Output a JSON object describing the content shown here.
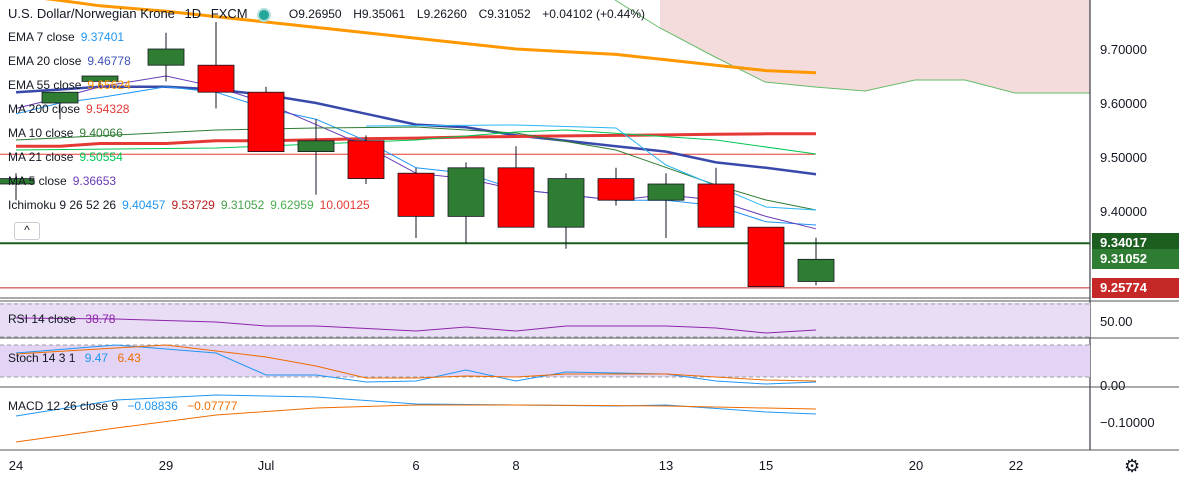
{
  "header": {
    "symbol": "U.S. Dollar/Norwegian Krone",
    "interval": "1D",
    "source": "FXCM",
    "open": "O9.26950",
    "high": "H9.35061",
    "low": "L9.26260",
    "close": "C9.31052",
    "change": "+0.04102 (+0.44%)"
  },
  "indicators": [
    {
      "name": "EMA 7 close",
      "values": [
        "9.37401"
      ],
      "colors": [
        "#2196f3"
      ]
    },
    {
      "name": "EMA 20 close",
      "values": [
        "9.46778"
      ],
      "colors": [
        "#3f51b5"
      ]
    },
    {
      "name": "EMA 55 close",
      "values": [
        "9.65624"
      ],
      "colors": [
        "#ff9800"
      ]
    },
    {
      "name": "MA 200 close",
      "values": [
        "9.54328"
      ],
      "colors": [
        "#e53935"
      ]
    },
    {
      "name": "MA 10 close",
      "values": [
        "9.40066"
      ],
      "colors": [
        "#2e7d32"
      ]
    },
    {
      "name": "MA 21 close",
      "values": [
        "9.50554"
      ],
      "colors": [
        "#00c853"
      ]
    },
    {
      "name": "MA 5 close",
      "values": [
        "9.36653"
      ],
      "colors": [
        "#673ab7"
      ]
    },
    {
      "name": "Ichimoku 9 26 52 26",
      "values": [
        "9.40457",
        "9.53729",
        "9.31052",
        "9.62959",
        "10.00125"
      ],
      "colors": [
        "#2196f3",
        "#b71c1c",
        "#43a047",
        "#4caf50",
        "#e53935"
      ]
    }
  ],
  "rsi_legend": {
    "name": "RSI 14 close",
    "value": "38.78"
  },
  "stoch_legend": {
    "name": "Stoch 14 3 1",
    "k": "9.47",
    "d": "6.43"
  },
  "macd_legend": {
    "name": "MACD 12 26 close 9",
    "macd": "−0.08836",
    "signal": "−0.07777"
  },
  "collapse_label": "^",
  "price_axis": {
    "ticks": [
      "9.70000",
      "9.60000",
      "9.50000",
      "9.40000"
    ],
    "tags": [
      {
        "label": "9.34017",
        "value": 9.34017,
        "color": "#1b5e20"
      },
      {
        "label": "9.31052",
        "value": 9.31052,
        "color": "#2e7d32"
      },
      {
        "label": "9.25774",
        "value": 9.25774,
        "color": "#c62828"
      }
    ]
  },
  "rsi_axis": {
    "ticks": [
      "50.00"
    ]
  },
  "stoch_axis": {
    "ticks": [
      "0.00"
    ]
  },
  "macd_axis": {
    "ticks": [
      "−0.10000"
    ]
  },
  "time_axis": {
    "ticks": [
      "24",
      "29",
      "Jul",
      "6",
      "8",
      "13",
      "15",
      "20",
      "22"
    ]
  },
  "colors": {
    "up": "#2e7d32",
    "down": "#ff0000",
    "cloud_bear": "#f3d6d6",
    "rsi_band": "#e8ddf5",
    "stoch_band": "#e3d4f5"
  },
  "chart_data": {
    "type": "candlestick",
    "title": "U.S. Dollar/Norwegian Krone 1D FXCM",
    "x_ticks": [
      "24",
      "29",
      "Jul",
      "6",
      "8",
      "13",
      "15",
      "20",
      "22"
    ],
    "ylim": [
      9.23,
      9.8
    ],
    "candles": [
      {
        "x": "Jun 24",
        "o": 9.45,
        "h": 9.47,
        "l": 9.42,
        "c": 9.46
      },
      {
        "x": "Jun 25",
        "o": 9.6,
        "h": 9.62,
        "l": 9.57,
        "c": 9.62
      },
      {
        "x": "Jun 26",
        "o": 9.64,
        "h": 9.65,
        "l": 9.63,
        "c": 9.65
      },
      {
        "x": "Jun 29",
        "o": 9.67,
        "h": 9.73,
        "l": 9.64,
        "c": 9.7
      },
      {
        "x": "Jun 30",
        "o": 9.67,
        "h": 9.75,
        "l": 9.59,
        "c": 9.62
      },
      {
        "x": "Jul 1",
        "o": 9.62,
        "h": 9.63,
        "l": 9.51,
        "c": 9.51
      },
      {
        "x": "Jul 2",
        "o": 9.51,
        "h": 9.57,
        "l": 9.43,
        "c": 9.53
      },
      {
        "x": "Jul 3",
        "o": 9.53,
        "h": 9.54,
        "l": 9.45,
        "c": 9.46
      },
      {
        "x": "Jul 6",
        "o": 9.47,
        "h": 9.48,
        "l": 9.35,
        "c": 9.39
      },
      {
        "x": "Jul 7",
        "o": 9.39,
        "h": 9.49,
        "l": 9.34,
        "c": 9.48
      },
      {
        "x": "Jul 8",
        "o": 9.48,
        "h": 9.52,
        "l": 9.37,
        "c": 9.37
      },
      {
        "x": "Jul 9",
        "o": 9.37,
        "h": 9.47,
        "l": 9.33,
        "c": 9.46
      },
      {
        "x": "Jul 10",
        "o": 9.46,
        "h": 9.48,
        "l": 9.41,
        "c": 9.42
      },
      {
        "x": "Jul 13",
        "o": 9.42,
        "h": 9.47,
        "l": 9.35,
        "c": 9.45
      },
      {
        "x": "Jul 14",
        "o": 9.45,
        "h": 9.48,
        "l": 9.37,
        "c": 9.37
      },
      {
        "x": "Jul 15",
        "o": 9.37,
        "h": 9.37,
        "l": 9.26,
        "c": 9.26
      },
      {
        "x": "Jul 16",
        "o": 9.2695,
        "h": 9.35061,
        "l": 9.2626,
        "c": 9.31052
      }
    ],
    "series": [
      {
        "name": "EMA 55 close",
        "values": [
          9.8,
          9.79,
          9.78,
          9.77,
          9.76,
          9.75,
          9.74,
          9.73,
          9.72,
          9.71,
          9.7,
          9.695,
          9.69,
          9.68,
          9.67,
          9.66,
          9.656
        ]
      },
      {
        "name": "EMA 20 close",
        "values": [
          9.62,
          9.625,
          9.63,
          9.63,
          9.625,
          9.615,
          9.6,
          9.58,
          9.56,
          9.555,
          9.54,
          9.53,
          9.52,
          9.51,
          9.49,
          9.48,
          9.468
        ]
      },
      {
        "name": "MA 200 close",
        "values": [
          9.52,
          9.52,
          9.525,
          9.525,
          9.53,
          9.53,
          9.532,
          9.534,
          9.535,
          9.537,
          9.538,
          9.539,
          9.54,
          9.541,
          9.542,
          9.543,
          9.543
        ]
      },
      {
        "name": "EMA 7 close",
        "values": [
          9.58,
          9.6,
          9.61,
          9.63,
          9.62,
          9.59,
          9.57,
          9.53,
          9.48,
          9.47,
          9.44,
          9.43,
          9.42,
          9.42,
          9.41,
          9.38,
          9.374
        ]
      },
      {
        "name": "MA 5 close",
        "values": [
          9.59,
          9.61,
          9.63,
          9.65,
          9.63,
          9.6,
          9.56,
          9.52,
          9.47,
          9.46,
          9.44,
          9.43,
          9.42,
          9.43,
          9.42,
          9.39,
          9.367
        ]
      }
    ],
    "rsi": {
      "name": "RSI 14 close",
      "last": 38.78
    },
    "stoch": {
      "name": "Stoch 14 3 1",
      "k_last": 9.47,
      "d_last": 6.43
    },
    "macd": {
      "name": "MACD 12 26 close 9",
      "macd_last": -0.08836,
      "signal_last": -0.07777
    }
  }
}
